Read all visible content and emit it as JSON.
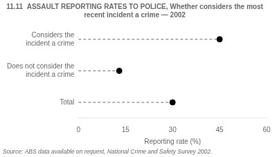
{
  "chart_data": {
    "type": "dot",
    "orientation": "horizontal",
    "title": "11.11  ASSAULT REPORTING RATES TO POLICE, Whether considers the most\nrecent incident a crime — 2002",
    "categories": [
      "Considers the\nincident a crime",
      "Does not consider the\nincident a crime",
      "Total"
    ],
    "values": [
      45,
      13,
      30
    ],
    "xlabel": "Reporting rate (%)",
    "xlim": [
      0,
      60
    ],
    "xticks": [
      0,
      15,
      30,
      45,
      60
    ],
    "annotations": [
      "Source: ABS data available on request, National Crime and Safety Survey 2002."
    ],
    "color": "#000000",
    "marker": "circle",
    "line_style": "dashed",
    "grid": false
  }
}
